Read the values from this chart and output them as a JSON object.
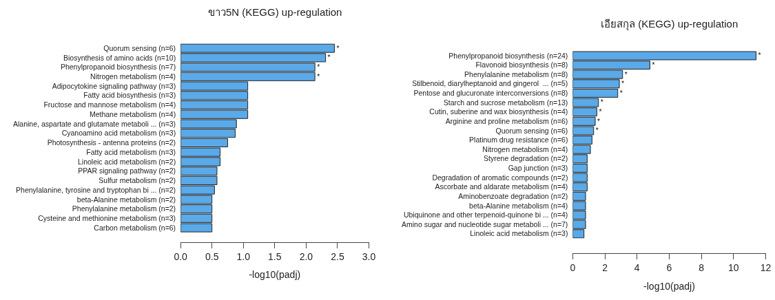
{
  "chart_data": [
    {
      "type": "bar",
      "orientation": "horizontal",
      "title": "ขาว5N (KEGG) up-regulation",
      "xlabel": "-log10(padj)",
      "categories": [
        "Quorum sensing (n=6)",
        "Biosynthesis of amino acids (n=10)",
        "Phenylpropanoid biosynthesis (n=7)",
        "Nitrogen metabolism (n=4)",
        "Adipocytokine signaling pathway (n=3)",
        "Fatty acid biosynthesis (n=3)",
        "Fructose and mannose metabolism (n=4)",
        "Methane metabolism (n=4)",
        "Alanine, aspartate and glutamate metaboli ... (n=3)",
        "Cyanoamino acid metabolism (n=3)",
        "Photosynthesis - antenna proteins (n=2)",
        "Fatty acid metabolism (n=3)",
        "Linoleic acid metabolism (n=2)",
        "PPAR signaling pathway (n=2)",
        "Sulfur metabolism (n=2)",
        "Phenylalanine, tyrosine and tryptophan bi ... (n=2)",
        "beta-Alanine metabolism (n=2)",
        "Phenylalanine metabolism (n=2)",
        "Cysteine and methionine metabolism (n=3)",
        "Carbon metabolism (n=6)"
      ],
      "values": [
        2.45,
        2.31,
        2.14,
        2.14,
        1.07,
        1.07,
        1.07,
        1.07,
        0.89,
        0.87,
        0.75,
        0.63,
        0.63,
        0.58,
        0.58,
        0.54,
        0.5,
        0.5,
        0.5,
        0.5
      ],
      "value_labels": [
        "*",
        "*",
        "*",
        "*",
        null,
        null,
        null,
        null,
        null,
        null,
        null,
        null,
        null,
        null,
        null,
        null,
        null,
        null,
        null,
        null
      ],
      "color": "#5aa9e8",
      "xlim": [
        0,
        3
      ],
      "xticks": [
        {
          "value": 0,
          "label": "0.0"
        },
        {
          "value": 0.5,
          "label": "0.5"
        },
        {
          "value": 1,
          "label": "1.0"
        },
        {
          "value": 1.5,
          "label": "1.5"
        },
        {
          "value": 2,
          "label": "2.0"
        },
        {
          "value": 2.5,
          "label": "2.5"
        },
        {
          "value": 3,
          "label": "3.0"
        }
      ]
    },
    {
      "type": "bar",
      "orientation": "horizontal",
      "title": "เอียสกุล (KEGG) up-regulation",
      "xlabel": "-log10(padj)",
      "categories": [
        "Phenylpropanoid biosynthesis (n=24)",
        "Flavonoid biosynthesis (n=8)",
        "Phenylalanine metabolism (n=8)",
        "Stilbenoid, diarylheptanoid and gingerol  ... (n=5)",
        "Pentose and glucuronate interconversions (n=8)",
        "Starch and sucrose metabolism (n=13)",
        "Cutin, suberine and wax biosynthesis (n=4)",
        "Arginine and proline metabolism (n=6)",
        "Quorum sensing (n=6)",
        "Platinum drug resistance (n=6)",
        "Nitrogen metabolism (n=4)",
        "Styrene degradation (n=2)",
        "Gap junction (n=3)",
        "Degradation of aromatic compounds (n=2)",
        "Ascorbate and aldarate metabolism (n=4)",
        "Aminobenzoate degradation (n=2)",
        "beta-Alanine metabolism (n=4)",
        "Ubiquinone and other terpenoid-quinone bi ... (n=4)",
        "Amino sugar and nucleotide sugar metaboli ... (n=7)",
        "Linoleic acid metabolism (n=3)"
      ],
      "values": [
        11.4,
        4.8,
        3.1,
        2.9,
        2.8,
        1.6,
        1.5,
        1.4,
        1.3,
        1.2,
        1.1,
        0.9,
        0.9,
        0.9,
        0.9,
        0.8,
        0.8,
        0.8,
        0.8,
        0.7
      ],
      "value_labels": [
        "*",
        "*",
        "*",
        "*",
        "*",
        "*",
        "*",
        "*",
        "*",
        null,
        null,
        null,
        null,
        null,
        null,
        null,
        null,
        null,
        null,
        null
      ],
      "color": "#5aa9e8",
      "xlim": [
        0,
        12
      ],
      "xticks": [
        0,
        2,
        4,
        6,
        8,
        10,
        12
      ]
    }
  ]
}
